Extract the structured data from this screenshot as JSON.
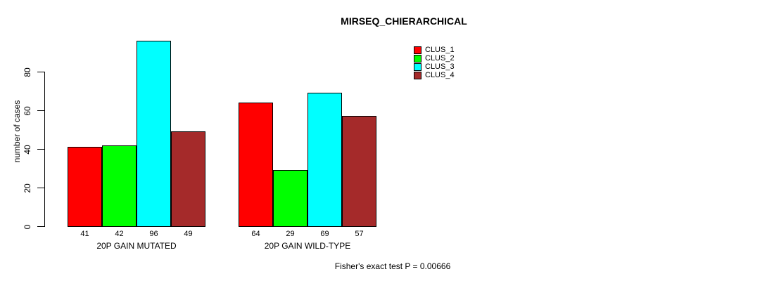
{
  "chart_data": {
    "type": "bar",
    "title": "MIRSEQ_CHIERARCHICAL",
    "ylabel": "number of cases",
    "xlabel": "",
    "ylim": [
      0,
      80
    ],
    "yticks": [
      0,
      20,
      40,
      60,
      80
    ],
    "grid": false,
    "legend_position": "top-right",
    "show_bar_values": true,
    "categories": [
      "20P GAIN MUTATED",
      "20P GAIN WILD-TYPE"
    ],
    "series": [
      {
        "name": "CLUS_1",
        "color": "#ff0000",
        "values": [
          41,
          64
        ]
      },
      {
        "name": "CLUS_2",
        "color": "#00ff00",
        "values": [
          42,
          29
        ]
      },
      {
        "name": "CLUS_3",
        "color": "#00ffff",
        "values": [
          96,
          69
        ]
      },
      {
        "name": "CLUS_4",
        "color": "#a52a2a",
        "values": [
          49,
          57
        ]
      }
    ],
    "footnote": "Fisher's exact test P = 0.00666"
  }
}
